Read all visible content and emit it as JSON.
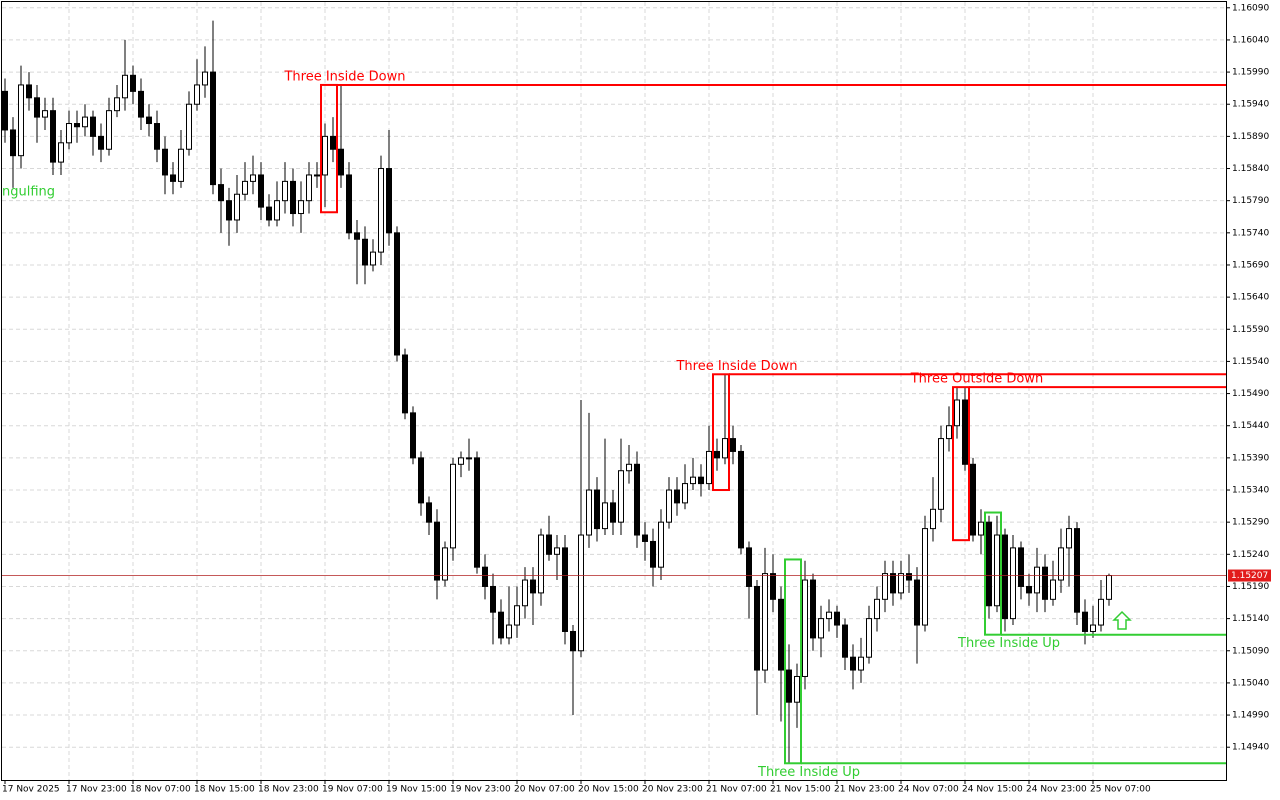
{
  "chart_data": {
    "type": "candlestick",
    "ylim": [
      1.14889,
      1.16099
    ],
    "yticks": [
      {
        "value": 1.1609,
        "label": "1.16090"
      },
      {
        "value": 1.1604,
        "label": "1.16040"
      },
      {
        "value": 1.1599,
        "label": "1.15990"
      },
      {
        "value": 1.1594,
        "label": "1.15940"
      },
      {
        "value": 1.1589,
        "label": "1.15890"
      },
      {
        "value": 1.1584,
        "label": "1.15840"
      },
      {
        "value": 1.1579,
        "label": "1.15790"
      },
      {
        "value": 1.1574,
        "label": "1.15740"
      },
      {
        "value": 1.1569,
        "label": "1.15690"
      },
      {
        "value": 1.1564,
        "label": "1.15640"
      },
      {
        "value": 1.1559,
        "label": "1.15590"
      },
      {
        "value": 1.1554,
        "label": "1.15540"
      },
      {
        "value": 1.1549,
        "label": "1.15490"
      },
      {
        "value": 1.1544,
        "label": "1.15440"
      },
      {
        "value": 1.1539,
        "label": "1.15390"
      },
      {
        "value": 1.1534,
        "label": "1.15340"
      },
      {
        "value": 1.1529,
        "label": "1.15290"
      },
      {
        "value": 1.1524,
        "label": "1.15240"
      },
      {
        "value": 1.1519,
        "label": "1.15190"
      },
      {
        "value": 1.1514,
        "label": "1.15140"
      },
      {
        "value": 1.1509,
        "label": "1.15090"
      },
      {
        "value": 1.1504,
        "label": "1.15040"
      },
      {
        "value": 1.1499,
        "label": "1.14990"
      },
      {
        "value": 1.1494,
        "label": "1.14940"
      }
    ],
    "grid": true,
    "last_price": 1.15207,
    "categories": [
      "17 Nov 2025",
      null,
      null,
      null,
      null,
      null,
      null,
      null,
      "17 Nov 23:00",
      null,
      null,
      null,
      null,
      null,
      null,
      null,
      "18 Nov 07:00",
      null,
      null,
      null,
      null,
      null,
      null,
      null,
      "18 Nov 15:00",
      null,
      null,
      null,
      null,
      null,
      null,
      null,
      "18 Nov 23:00",
      null,
      null,
      null,
      null,
      null,
      null,
      null,
      "19 Nov 07:00",
      null,
      null,
      null,
      null,
      null,
      null,
      null,
      "19 Nov 15:00",
      null,
      null,
      null,
      null,
      null,
      null,
      null,
      "19 Nov 23:00",
      null,
      null,
      null,
      null,
      null,
      null,
      null,
      "20 Nov 07:00",
      null,
      null,
      null,
      null,
      null,
      null,
      null,
      "20 Nov 15:00",
      null,
      null,
      null,
      null,
      null,
      null,
      null,
      "20 Nov 23:00",
      null,
      null,
      null,
      null,
      null,
      null,
      null,
      "21 Nov 07:00",
      null,
      null,
      null,
      null,
      null,
      null,
      null,
      "21 Nov 15:00",
      null,
      null,
      null,
      null,
      null,
      null,
      null,
      "21 Nov 23:00",
      null,
      null,
      null,
      null,
      null,
      null,
      null,
      "24 Nov 07:00",
      null,
      null,
      null,
      null,
      null,
      null,
      null,
      "24 Nov 15:00",
      null,
      null,
      null,
      null,
      null,
      null,
      null,
      "24 Nov 23:00",
      null,
      null,
      null,
      null,
      null,
      null,
      null,
      "25 Nov 07:00",
      null,
      null
    ],
    "open": [
      1.1596,
      1.159,
      1.1586,
      1.1597,
      1.1595,
      1.1592,
      1.1593,
      1.1585,
      1.1588,
      1.1591,
      1.15905,
      1.1592,
      1.1589,
      1.1587,
      1.1593,
      1.1595,
      1.15985,
      1.1596,
      1.1592,
      1.1591,
      1.1587,
      1.1583,
      1.1582,
      1.1587,
      1.1594,
      1.1597,
      1.1599,
      1.15815,
      1.1579,
      1.1576,
      1.158,
      1.1582,
      1.1583,
      1.1578,
      1.1576,
      1.1579,
      1.1582,
      1.1577,
      1.1579,
      1.1583,
      1.1583,
      1.1589,
      1.1587,
      1.1583,
      1.1574,
      1.1573,
      1.1569,
      1.1571,
      1.1584,
      1.1574,
      1.1555,
      1.1546,
      1.1539,
      1.1532,
      1.1529,
      1.152,
      1.1525,
      1.1538,
      1.1539,
      1.1539,
      1.1522,
      1.1519,
      1.1515,
      1.1511,
      1.1513,
      1.1516,
      1.152,
      1.1518,
      1.1527,
      1.1524,
      1.1525,
      1.1512,
      1.1509,
      1.1527,
      1.1534,
      1.1528,
      1.1532,
      1.1529,
      1.1537,
      1.1538,
      1.1527,
      1.1526,
      1.1522,
      1.1529,
      1.1534,
      1.1532,
      1.1535,
      1.1536,
      1.1535,
      1.154,
      1.1539,
      1.1542,
      1.154,
      1.1525,
      1.1519,
      1.1506,
      1.1521,
      1.1517,
      1.1506,
      1.1501,
      1.1505,
      1.152,
      1.1511,
      1.1514,
      1.1515,
      1.1513,
      1.1508,
      1.1506,
      1.1508,
      1.1514,
      1.1517,
      1.1521,
      1.1518,
      1.1521,
      1.152,
      1.1513,
      1.1528,
      1.1531,
      1.1542,
      1.1544,
      1.1548,
      1.1538,
      1.1527,
      1.1529,
      1.1516,
      1.1527,
      1.1514,
      1.1525,
      1.1519,
      1.1518,
      1.1522,
      1.1517,
      1.152,
      1.1525,
      1.1528,
      1.1515,
      1.1512,
      1.1513,
      1.1517
    ],
    "high": [
      1.1598,
      1.1592,
      1.16,
      1.1599,
      1.1597,
      1.1595,
      1.1595,
      1.159,
      1.1593,
      1.1593,
      1.1594,
      1.1593,
      1.1591,
      1.1595,
      1.1597,
      1.1604,
      1.16,
      1.1598,
      1.1594,
      1.1593,
      1.1589,
      1.1585,
      1.159,
      1.1596,
      1.1601,
      1.1603,
      1.1607,
      1.1584,
      1.1581,
      1.1583,
      1.1585,
      1.1586,
      1.1585,
      1.158,
      1.1582,
      1.1585,
      1.1584,
      1.1582,
      1.1585,
      1.1585,
      1.1591,
      1.1592,
      1.1597,
      1.1585,
      1.1576,
      1.1575,
      1.1573,
      1.1586,
      1.159,
      1.1575,
      1.1556,
      1.1547,
      1.154,
      1.1533,
      1.1531,
      1.1526,
      1.1539,
      1.154,
      1.1542,
      1.154,
      1.1524,
      1.1521,
      1.1517,
      1.1519,
      1.1519,
      1.1522,
      1.1522,
      1.1528,
      1.153,
      1.1527,
      1.1527,
      1.1513,
      1.1548,
      1.1546,
      1.1536,
      1.1542,
      1.1534,
      1.1542,
      1.1541,
      1.154,
      1.1529,
      1.1528,
      1.1531,
      1.1536,
      1.1536,
      1.1538,
      1.1539,
      1.1538,
      1.1544,
      1.1542,
      1.1552,
      1.1544,
      1.1541,
      1.1526,
      1.152,
      1.1525,
      1.1524,
      1.1519,
      1.151,
      1.1507,
      1.1523,
      1.1521,
      1.1516,
      1.1517,
      1.1516,
      1.1514,
      1.151,
      1.1511,
      1.1516,
      1.1519,
      1.1523,
      1.1523,
      1.1523,
      1.1524,
      1.1522,
      1.153,
      1.1536,
      1.1544,
      1.1547,
      1.155,
      1.155,
      1.1539,
      1.1531,
      1.153,
      1.153,
      1.1528,
      1.1527,
      1.1526,
      1.1521,
      1.1525,
      1.1524,
      1.1523,
      1.1528,
      1.153,
      1.1529,
      1.1517,
      1.1516,
      1.152,
      1.1521
    ],
    "low": [
      1.1588,
      1.1581,
      1.1584,
      1.1593,
      1.1588,
      1.159,
      1.1583,
      1.1583,
      1.1587,
      1.1588,
      1.1589,
      1.1586,
      1.1585,
      1.1586,
      1.1592,
      1.1593,
      1.1594,
      1.159,
      1.1589,
      1.1585,
      1.158,
      1.158,
      1.1581,
      1.1586,
      1.1593,
      1.1595,
      1.158,
      1.1574,
      1.1572,
      1.1574,
      1.1579,
      1.158,
      1.1576,
      1.1575,
      1.1575,
      1.1577,
      1.1575,
      1.1574,
      1.1577,
      1.1581,
      1.1578,
      1.1585,
      1.1581,
      1.1573,
      1.1566,
      1.1566,
      1.1568,
      1.1569,
      1.1572,
      1.1554,
      1.1545,
      1.1538,
      1.153,
      1.1527,
      1.1517,
      1.1519,
      1.1523,
      1.1536,
      1.1537,
      1.1521,
      1.1517,
      1.151,
      1.151,
      1.151,
      1.1511,
      1.1514,
      1.1513,
      1.1516,
      1.1523,
      1.152,
      1.151,
      1.1499,
      1.1508,
      1.1525,
      1.1526,
      1.1527,
      1.1527,
      1.1527,
      1.1535,
      1.1525,
      1.1523,
      1.1519,
      1.152,
      1.1528,
      1.153,
      1.1531,
      1.1534,
      1.1533,
      1.1534,
      1.1537,
      1.1538,
      1.1538,
      1.1524,
      1.1514,
      1.1499,
      1.1504,
      1.1515,
      1.1498,
      1.14915,
      1.1497,
      1.1503,
      1.1509,
      1.1508,
      1.1512,
      1.1511,
      1.1506,
      1.1503,
      1.1504,
      1.1507,
      1.1512,
      1.1515,
      1.1516,
      1.1517,
      1.1518,
      1.1507,
      1.1512,
      1.1526,
      1.1529,
      1.154,
      1.1542,
      1.1537,
      1.1526,
      1.1524,
      1.1514,
      1.1515,
      1.1512,
      1.1513,
      1.1517,
      1.1516,
      1.1515,
      1.1515,
      1.1516,
      1.1518,
      1.1519,
      1.1513,
      1.151,
      1.1511,
      1.1512,
      1.1516
    ],
    "close": [
      1.159,
      1.1586,
      1.1597,
      1.1595,
      1.1592,
      1.1593,
      1.1585,
      1.1588,
      1.1591,
      1.15905,
      1.1592,
      1.1589,
      1.1587,
      1.1593,
      1.1595,
      1.15985,
      1.1596,
      1.1592,
      1.1591,
      1.1587,
      1.1583,
      1.1582,
      1.1587,
      1.1594,
      1.1597,
      1.1599,
      1.15815,
      1.1579,
      1.1576,
      1.158,
      1.1582,
      1.1583,
      1.1578,
      1.1576,
      1.1579,
      1.1582,
      1.1577,
      1.1579,
      1.1583,
      1.1583,
      1.1589,
      1.1587,
      1.1583,
      1.1574,
      1.1573,
      1.1569,
      1.1571,
      1.1584,
      1.1574,
      1.1555,
      1.1546,
      1.1539,
      1.1532,
      1.1529,
      1.152,
      1.1525,
      1.1538,
      1.1539,
      1.1539,
      1.1522,
      1.1519,
      1.1515,
      1.1511,
      1.1513,
      1.1516,
      1.152,
      1.1518,
      1.1527,
      1.1524,
      1.1525,
      1.1512,
      1.1509,
      1.1527,
      1.1534,
      1.1528,
      1.1532,
      1.1529,
      1.1537,
      1.1538,
      1.1527,
      1.1526,
      1.1522,
      1.1529,
      1.1534,
      1.1532,
      1.1535,
      1.1536,
      1.1535,
      1.154,
      1.1539,
      1.1542,
      1.154,
      1.1525,
      1.1519,
      1.1506,
      1.1521,
      1.1517,
      1.1506,
      1.1501,
      1.1505,
      1.152,
      1.1511,
      1.1514,
      1.1515,
      1.1513,
      1.1508,
      1.1506,
      1.1508,
      1.1514,
      1.1517,
      1.1521,
      1.1518,
      1.1521,
      1.152,
      1.1513,
      1.1528,
      1.1531,
      1.1542,
      1.1544,
      1.1548,
      1.1538,
      1.1527,
      1.1529,
      1.1516,
      1.1527,
      1.1514,
      1.1525,
      1.1519,
      1.1518,
      1.1522,
      1.1517,
      1.152,
      1.1525,
      1.1528,
      1.1515,
      1.1512,
      1.1513,
      1.1517,
      1.15207
    ],
    "patterns": [
      {
        "label": "Three Inside Down",
        "color": "#ff0000",
        "bars": [
          40,
          41
        ],
        "level": 1.1597,
        "extent": 1.15772
      },
      {
        "label": "Three Inside Down",
        "color": "#ff0000",
        "bars": [
          89,
          90
        ],
        "level": 1.1552,
        "extent": 1.1534
      },
      {
        "label": "Three Outside Down",
        "color": "#ff0000",
        "bars": [
          119,
          120
        ],
        "level": 1.155,
        "extent": 1.15262
      },
      {
        "label": "Three Inside Up",
        "color": "#32cd32",
        "bars": [
          98,
          99
        ],
        "level": 1.14915,
        "extent": 1.15232
      },
      {
        "label": "Three Inside Up",
        "color": "#32cd32",
        "bars": [
          123,
          124
        ],
        "level": 1.15115,
        "extent": 1.15305
      }
    ],
    "left_label": "ngulfing"
  }
}
